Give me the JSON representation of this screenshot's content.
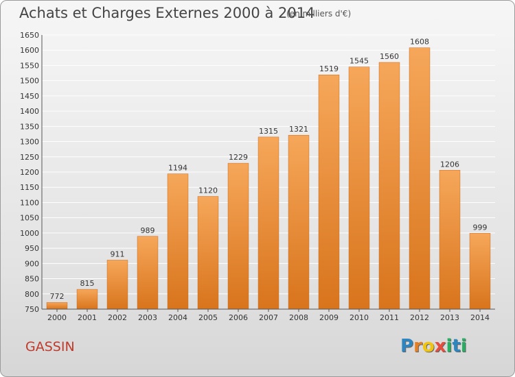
{
  "page": {
    "title": "Achats et Charges Externes 2000 à 2014",
    "unit_note": "(en milliers d'€)",
    "commune": "GASSIN",
    "logo": {
      "text": "Proxiti",
      "letters": [
        {
          "ch": "P",
          "color": "#2e86c1"
        },
        {
          "ch": "r",
          "color": "#e67e22"
        },
        {
          "ch": "o",
          "color": "#f1c40f"
        },
        {
          "ch": "x",
          "color": "#e74c3c"
        },
        {
          "ch": "i",
          "color": "#27ae60"
        },
        {
          "ch": "t",
          "color": "#2e86c1"
        },
        {
          "ch": "i",
          "color": "#27ae60"
        }
      ]
    }
  },
  "colors": {
    "bar_light": "#f6a75a",
    "bar_dark": "#d8741c",
    "bar_edge": "#c9681a",
    "grid": "#ffffff",
    "text": "#333333"
  },
  "chart_data": {
    "type": "bar",
    "title": "Achats et Charges Externes 2000 à 2014",
    "categories": [
      "2000",
      "2001",
      "2002",
      "2003",
      "2004",
      "2005",
      "2006",
      "2007",
      "2008",
      "2009",
      "2010",
      "2011",
      "2012",
      "2013",
      "2014"
    ],
    "values": [
      772,
      815,
      911,
      989,
      1194,
      1120,
      1229,
      1315,
      1321,
      1519,
      1545,
      1560,
      1608,
      1206,
      999
    ],
    "ylim": [
      750,
      1650
    ],
    "yticks": [
      750,
      800,
      850,
      900,
      950,
      1000,
      1050,
      1100,
      1150,
      1200,
      1250,
      1300,
      1350,
      1400,
      1450,
      1500,
      1550,
      1600,
      1650
    ],
    "grid": true,
    "data_labels": true
  }
}
